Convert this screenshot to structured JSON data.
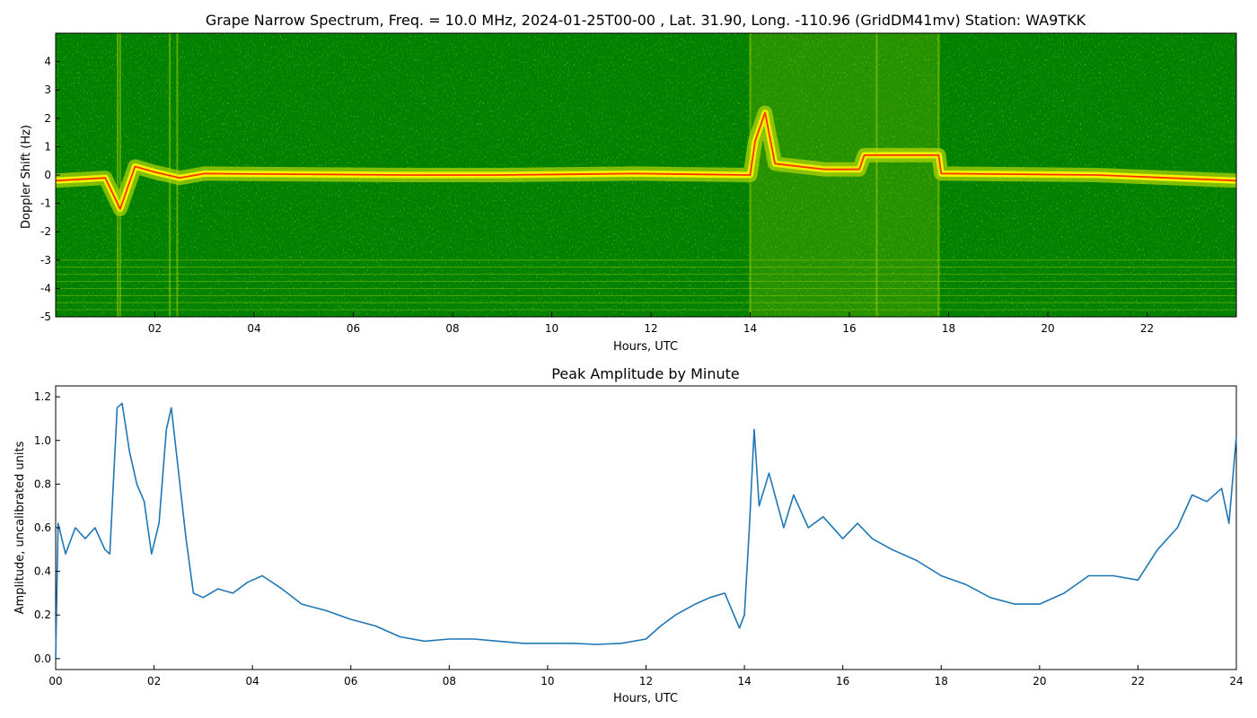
{
  "chart_data": [
    {
      "type": "heatmap",
      "title": "Grape Narrow Spectrum, Freq. = 10.0 MHz, 2024-01-25T00-00 , Lat.  31.90, Long. -110.96 (GridDM41mv) Station: WA9TKK",
      "xlabel": "Hours, UTC",
      "ylabel": "Doppler Shift (Hz)",
      "xlim": [
        0,
        23.8
      ],
      "ylim": [
        -5,
        5
      ],
      "xticks": [
        2,
        4,
        6,
        8,
        10,
        12,
        14,
        16,
        18,
        20,
        22
      ],
      "xtick_labels": [
        "02",
        "04",
        "06",
        "08",
        "10",
        "12",
        "14",
        "16",
        "18",
        "20",
        "22"
      ],
      "yticks": [
        -5,
        -4,
        -3,
        -2,
        -1,
        0,
        1,
        2,
        3,
        4
      ],
      "ytick_labels": [
        "-5",
        "-4",
        "-3",
        "-2",
        "-1",
        "0",
        "1",
        "2",
        "3",
        "4"
      ],
      "colors": {
        "background": "#008000",
        "mid": "#e6ee00",
        "peak": "#ff3300"
      },
      "dominant_trace": [
        {
          "x": 0.0,
          "y": -0.2
        },
        {
          "x": 1.0,
          "y": -0.1
        },
        {
          "x": 1.3,
          "y": -1.2
        },
        {
          "x": 1.6,
          "y": 0.3
        },
        {
          "x": 2.0,
          "y": 0.1
        },
        {
          "x": 2.5,
          "y": -0.1
        },
        {
          "x": 3.0,
          "y": 0.05
        },
        {
          "x": 7.0,
          "y": 0.0
        },
        {
          "x": 9.0,
          "y": 0.0
        },
        {
          "x": 11.7,
          "y": 0.05
        },
        {
          "x": 14.0,
          "y": 0.0
        },
        {
          "x": 14.1,
          "y": 1.2
        },
        {
          "x": 14.3,
          "y": 2.2
        },
        {
          "x": 14.5,
          "y": 0.4
        },
        {
          "x": 15.5,
          "y": 0.2
        },
        {
          "x": 16.2,
          "y": 0.2
        },
        {
          "x": 16.3,
          "y": 0.7
        },
        {
          "x": 17.8,
          "y": 0.7
        },
        {
          "x": 17.85,
          "y": 0.05
        },
        {
          "x": 21.0,
          "y": 0.0
        },
        {
          "x": 23.8,
          "y": -0.2
        }
      ]
    },
    {
      "type": "line",
      "title": "Peak Amplitude by Minute",
      "xlabel": "Hours, UTC",
      "ylabel": "Amplitude, uncalibrated units",
      "xlim": [
        0,
        24
      ],
      "ylim": [
        -0.05,
        1.25
      ],
      "xticks": [
        0,
        2,
        4,
        6,
        8,
        10,
        12,
        14,
        16,
        18,
        20,
        22,
        24
      ],
      "xtick_labels": [
        "00",
        "02",
        "04",
        "06",
        "08",
        "10",
        "12",
        "14",
        "16",
        "18",
        "20",
        "22",
        "24"
      ],
      "yticks": [
        0.0,
        0.2,
        0.4,
        0.6,
        0.8,
        1.0,
        1.2
      ],
      "ytick_labels": [
        "0.0",
        "0.2",
        "0.4",
        "0.6",
        "0.8",
        "1.0",
        "1.2"
      ],
      "line_color": "#1f77b4",
      "x": [
        0.0,
        0.05,
        0.2,
        0.4,
        0.6,
        0.8,
        1.0,
        1.1,
        1.25,
        1.35,
        1.5,
        1.65,
        1.8,
        1.95,
        2.1,
        2.25,
        2.35,
        2.5,
        2.65,
        2.8,
        3.0,
        3.3,
        3.6,
        3.9,
        4.2,
        4.6,
        5.0,
        5.5,
        6.0,
        6.5,
        7.0,
        7.5,
        8.0,
        8.5,
        9.0,
        9.5,
        10.0,
        10.5,
        11.0,
        11.5,
        12.0,
        12.3,
        12.6,
        13.0,
        13.3,
        13.6,
        13.9,
        14.0,
        14.1,
        14.2,
        14.3,
        14.5,
        14.8,
        15.0,
        15.3,
        15.6,
        16.0,
        16.3,
        16.6,
        17.0,
        17.5,
        18.0,
        18.5,
        19.0,
        19.5,
        20.0,
        20.5,
        21.0,
        21.5,
        22.0,
        22.4,
        22.8,
        23.1,
        23.4,
        23.7,
        23.85,
        24.0
      ],
      "values": [
        0.0,
        0.62,
        0.48,
        0.6,
        0.55,
        0.6,
        0.5,
        0.48,
        1.15,
        1.17,
        0.95,
        0.8,
        0.72,
        0.48,
        0.62,
        1.05,
        1.15,
        0.85,
        0.55,
        0.3,
        0.28,
        0.32,
        0.3,
        0.35,
        0.38,
        0.32,
        0.25,
        0.22,
        0.18,
        0.15,
        0.1,
        0.08,
        0.09,
        0.09,
        0.08,
        0.07,
        0.07,
        0.07,
        0.065,
        0.07,
        0.09,
        0.15,
        0.2,
        0.25,
        0.28,
        0.3,
        0.14,
        0.2,
        0.6,
        1.05,
        0.7,
        0.85,
        0.6,
        0.75,
        0.6,
        0.65,
        0.55,
        0.62,
        0.55,
        0.5,
        0.45,
        0.38,
        0.34,
        0.28,
        0.25,
        0.25,
        0.3,
        0.38,
        0.38,
        0.36,
        0.5,
        0.6,
        0.75,
        0.72,
        0.78,
        0.62,
        1.02
      ]
    }
  ]
}
